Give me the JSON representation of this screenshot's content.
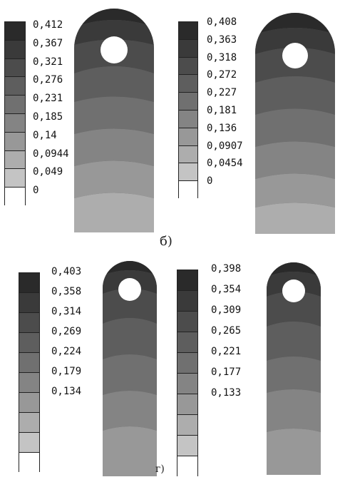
{
  "palette": [
    "#2a2a2a",
    "#3a3a3a",
    "#4c4c4c",
    "#5e5e5e",
    "#707070",
    "#848484",
    "#989898",
    "#adadad",
    "#c4c4c4",
    "#ffffff"
  ],
  "panels": [
    {
      "legend_values": [
        "0,412",
        "0,367",
        "0,321",
        "0,276",
        "0,231",
        "0,185",
        "0,14",
        "0,0944",
        "0,049",
        "0"
      ]
    },
    {
      "legend_values": [
        "0,408",
        "0,363",
        "0,318",
        "0,272",
        "0,227",
        "0,181",
        "0,136",
        "0,0907",
        "0,0454",
        "0"
      ]
    },
    {
      "legend_values": [
        "0,403",
        "0,358",
        "0,314",
        "0,269",
        "0,224",
        "0,179",
        "0,134",
        "",
        "",
        ""
      ]
    },
    {
      "legend_values": [
        "0,398",
        "0,354",
        "0,309",
        "0,265",
        "0,221",
        "0,177",
        "0,133",
        "",
        "",
        ""
      ]
    }
  ],
  "markers": {
    "b": "б)",
    "g": "г)"
  }
}
